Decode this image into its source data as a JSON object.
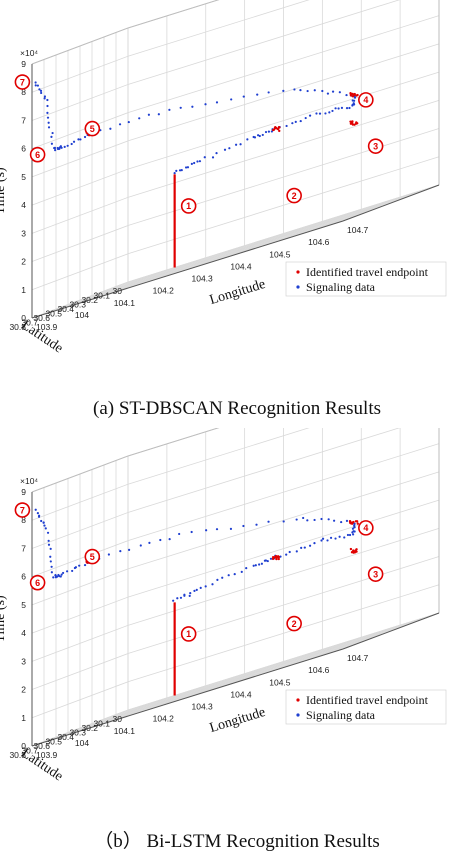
{
  "captions": [
    "(a) ST-DBSCAN Recognition Results",
    "（b） Bi-LSTM Recognition Results"
  ],
  "chart_data": [
    {
      "type": "scatter",
      "title": "",
      "zlabel": "Time (s)",
      "ylabel": "Latitude",
      "xlabel": "Longitude",
      "z_exponent_label": "×10⁴",
      "x_ticks": [
        "103.9",
        "104",
        "104.1",
        "104.2",
        "104.3",
        "104.4",
        "104.5",
        "104.6",
        "104.7"
      ],
      "y_ticks": [
        "30",
        "30.1",
        "30.2",
        "30.3",
        "30.4",
        "30.5",
        "30.6",
        "30.7",
        "30.8"
      ],
      "z_ticks": [
        "0",
        "1",
        "2",
        "3",
        "4",
        "5",
        "6",
        "7",
        "8",
        "9"
      ],
      "xlim": [
        103.9,
        104.7
      ],
      "ylim": [
        30,
        30.8
      ],
      "zlim": [
        0,
        9
      ],
      "grid": true,
      "legend_position": "bottom-right",
      "legend": [
        "Identified travel endpoint",
        "Signaling data"
      ],
      "colors": {
        "endpoint": "#e00000",
        "signaling": "#1f3fd0",
        "box": "#2a8a2a"
      },
      "markers": [
        {
          "label": "1",
          "x": 104.02,
          "y": 30.0,
          "z": 1.4
        },
        {
          "label": "2",
          "x": 104.42,
          "y": 30.45,
          "z": 1.9
        },
        {
          "label": "3",
          "x": 104.68,
          "y": 30.58,
          "z": 2.6
        },
        {
          "label": "4",
          "x": 104.66,
          "y": 30.58,
          "z": 3.9
        },
        {
          "label": "5",
          "x": 104.05,
          "y": 30.8,
          "z": 5.5
        },
        {
          "label": "6",
          "x": 103.9,
          "y": 30.62,
          "z": 5.5
        },
        {
          "label": "7",
          "x": 103.9,
          "y": 30.78,
          "z": 8.4
        }
      ]
    },
    {
      "type": "scatter",
      "title": "",
      "zlabel": "Time (s)",
      "ylabel": "Latitude",
      "xlabel": "Longitude",
      "z_exponent_label": "×10⁴",
      "x_ticks": [
        "103.9",
        "104",
        "104.1",
        "104.2",
        "104.3",
        "104.4",
        "104.5",
        "104.6",
        "104.7"
      ],
      "y_ticks": [
        "30",
        "30.1",
        "30.2",
        "30.3",
        "30.4",
        "30.5",
        "30.6",
        "30.7",
        "30.8"
      ],
      "z_ticks": [
        "0",
        "1",
        "2",
        "3",
        "4",
        "5",
        "6",
        "7",
        "8",
        "9"
      ],
      "xlim": [
        103.9,
        104.7
      ],
      "ylim": [
        30,
        30.8
      ],
      "zlim": [
        0,
        9
      ],
      "grid": true,
      "legend_position": "bottom-right",
      "legend": [
        "Identified travel endpoint",
        "Signaling data"
      ],
      "colors": {
        "endpoint": "#e00000",
        "signaling": "#1f3fd0",
        "box": "#2a8a2a"
      },
      "markers": [
        {
          "label": "1",
          "x": 104.02,
          "y": 30.0,
          "z": 1.4
        },
        {
          "label": "2",
          "x": 104.42,
          "y": 30.45,
          "z": 1.9
        },
        {
          "label": "3",
          "x": 104.68,
          "y": 30.58,
          "z": 2.6
        },
        {
          "label": "4",
          "x": 104.66,
          "y": 30.58,
          "z": 3.9
        },
        {
          "label": "5",
          "x": 104.05,
          "y": 30.8,
          "z": 5.5
        },
        {
          "label": "6",
          "x": 103.9,
          "y": 30.62,
          "z": 5.5
        },
        {
          "label": "7",
          "x": 103.9,
          "y": 30.78,
          "z": 8.4
        }
      ]
    }
  ]
}
